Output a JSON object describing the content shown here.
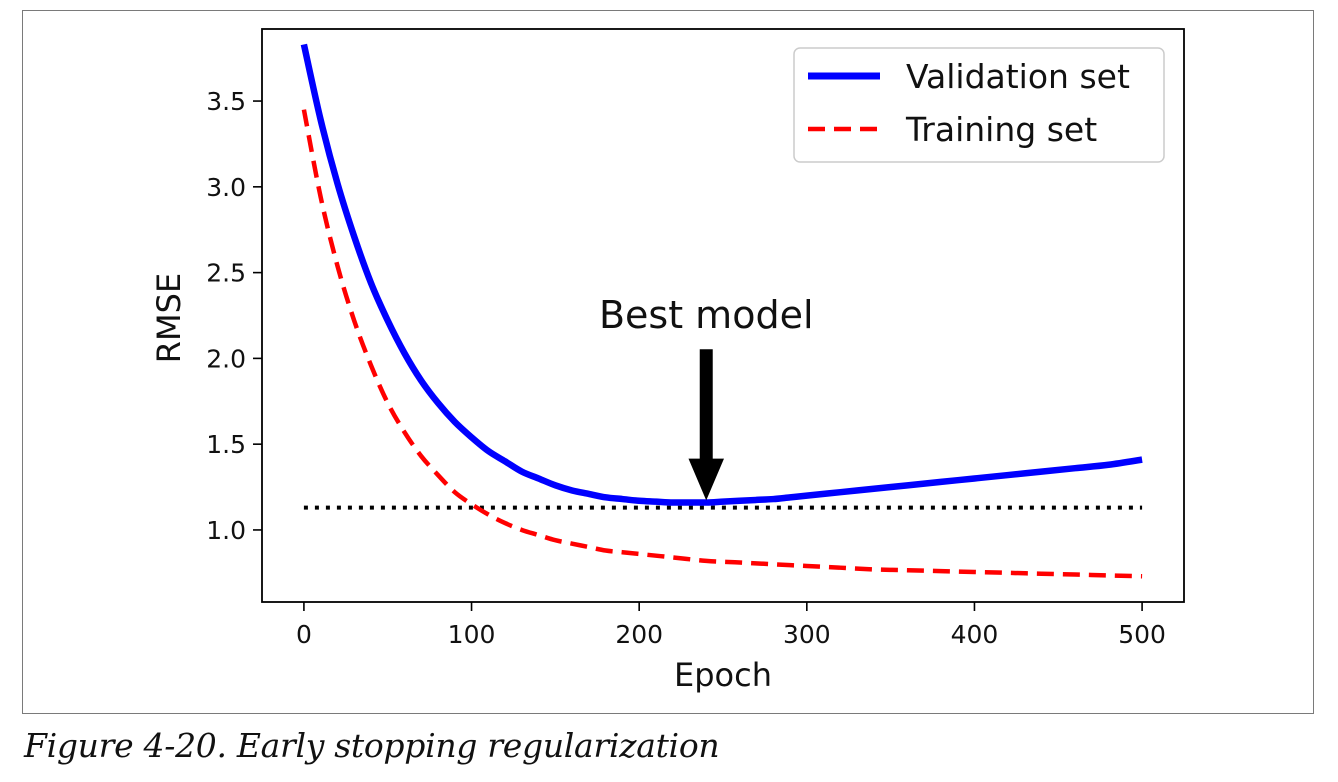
{
  "caption": "Figure 4-20. Early stopping regularization",
  "chart_data": {
    "type": "line",
    "title": "",
    "xlabel": "Epoch",
    "ylabel": "RMSE",
    "xlim": [
      -25,
      525
    ],
    "ylim": [
      0.58,
      3.92
    ],
    "xticks": [
      0,
      100,
      200,
      300,
      400,
      500
    ],
    "yticks": [
      1.0,
      1.5,
      2.0,
      2.5,
      3.0,
      3.5
    ],
    "xtick_labels": [
      "0",
      "100",
      "200",
      "300",
      "400",
      "500"
    ],
    "ytick_labels": [
      "1.0",
      "1.5",
      "2.0",
      "2.5",
      "3.0",
      "3.5"
    ],
    "grid": false,
    "legend_position": "top-right",
    "series": [
      {
        "name": "Validation set",
        "color": "#0000ff",
        "style": "solid",
        "x": [
          0,
          10,
          20,
          30,
          40,
          50,
          60,
          70,
          80,
          90,
          100,
          110,
          120,
          130,
          140,
          150,
          160,
          170,
          180,
          190,
          200,
          210,
          220,
          230,
          240,
          250,
          260,
          270,
          280,
          290,
          300,
          320,
          340,
          360,
          380,
          400,
          420,
          440,
          460,
          480,
          500
        ],
        "y": [
          3.83,
          3.39,
          3.02,
          2.71,
          2.44,
          2.22,
          2.03,
          1.87,
          1.74,
          1.63,
          1.54,
          1.46,
          1.4,
          1.34,
          1.3,
          1.26,
          1.23,
          1.21,
          1.19,
          1.18,
          1.17,
          1.165,
          1.16,
          1.16,
          1.16,
          1.165,
          1.17,
          1.175,
          1.18,
          1.19,
          1.2,
          1.22,
          1.24,
          1.26,
          1.28,
          1.3,
          1.32,
          1.34,
          1.36,
          1.38,
          1.41
        ]
      },
      {
        "name": "Training set",
        "color": "#ff0000",
        "style": "dashed",
        "x": [
          0,
          10,
          20,
          30,
          40,
          50,
          60,
          70,
          80,
          90,
          100,
          110,
          120,
          130,
          140,
          150,
          160,
          170,
          180,
          190,
          200,
          220,
          240,
          260,
          280,
          300,
          320,
          340,
          360,
          380,
          400,
          420,
          440,
          460,
          480,
          500
        ],
        "y": [
          3.45,
          2.94,
          2.54,
          2.22,
          1.96,
          1.74,
          1.57,
          1.43,
          1.32,
          1.22,
          1.15,
          1.09,
          1.04,
          1.0,
          0.97,
          0.94,
          0.92,
          0.9,
          0.88,
          0.87,
          0.86,
          0.84,
          0.82,
          0.81,
          0.8,
          0.79,
          0.78,
          0.77,
          0.765,
          0.76,
          0.755,
          0.75,
          0.745,
          0.74,
          0.735,
          0.73
        ]
      }
    ],
    "reference_line": {
      "y": 1.13,
      "x": [
        0,
        500
      ],
      "color": "#000000",
      "style": "dotted"
    },
    "annotation": {
      "text": "Best model",
      "arrow_tip": [
        240,
        1.18
      ],
      "arrow_tail": [
        240,
        2.05
      ]
    }
  }
}
